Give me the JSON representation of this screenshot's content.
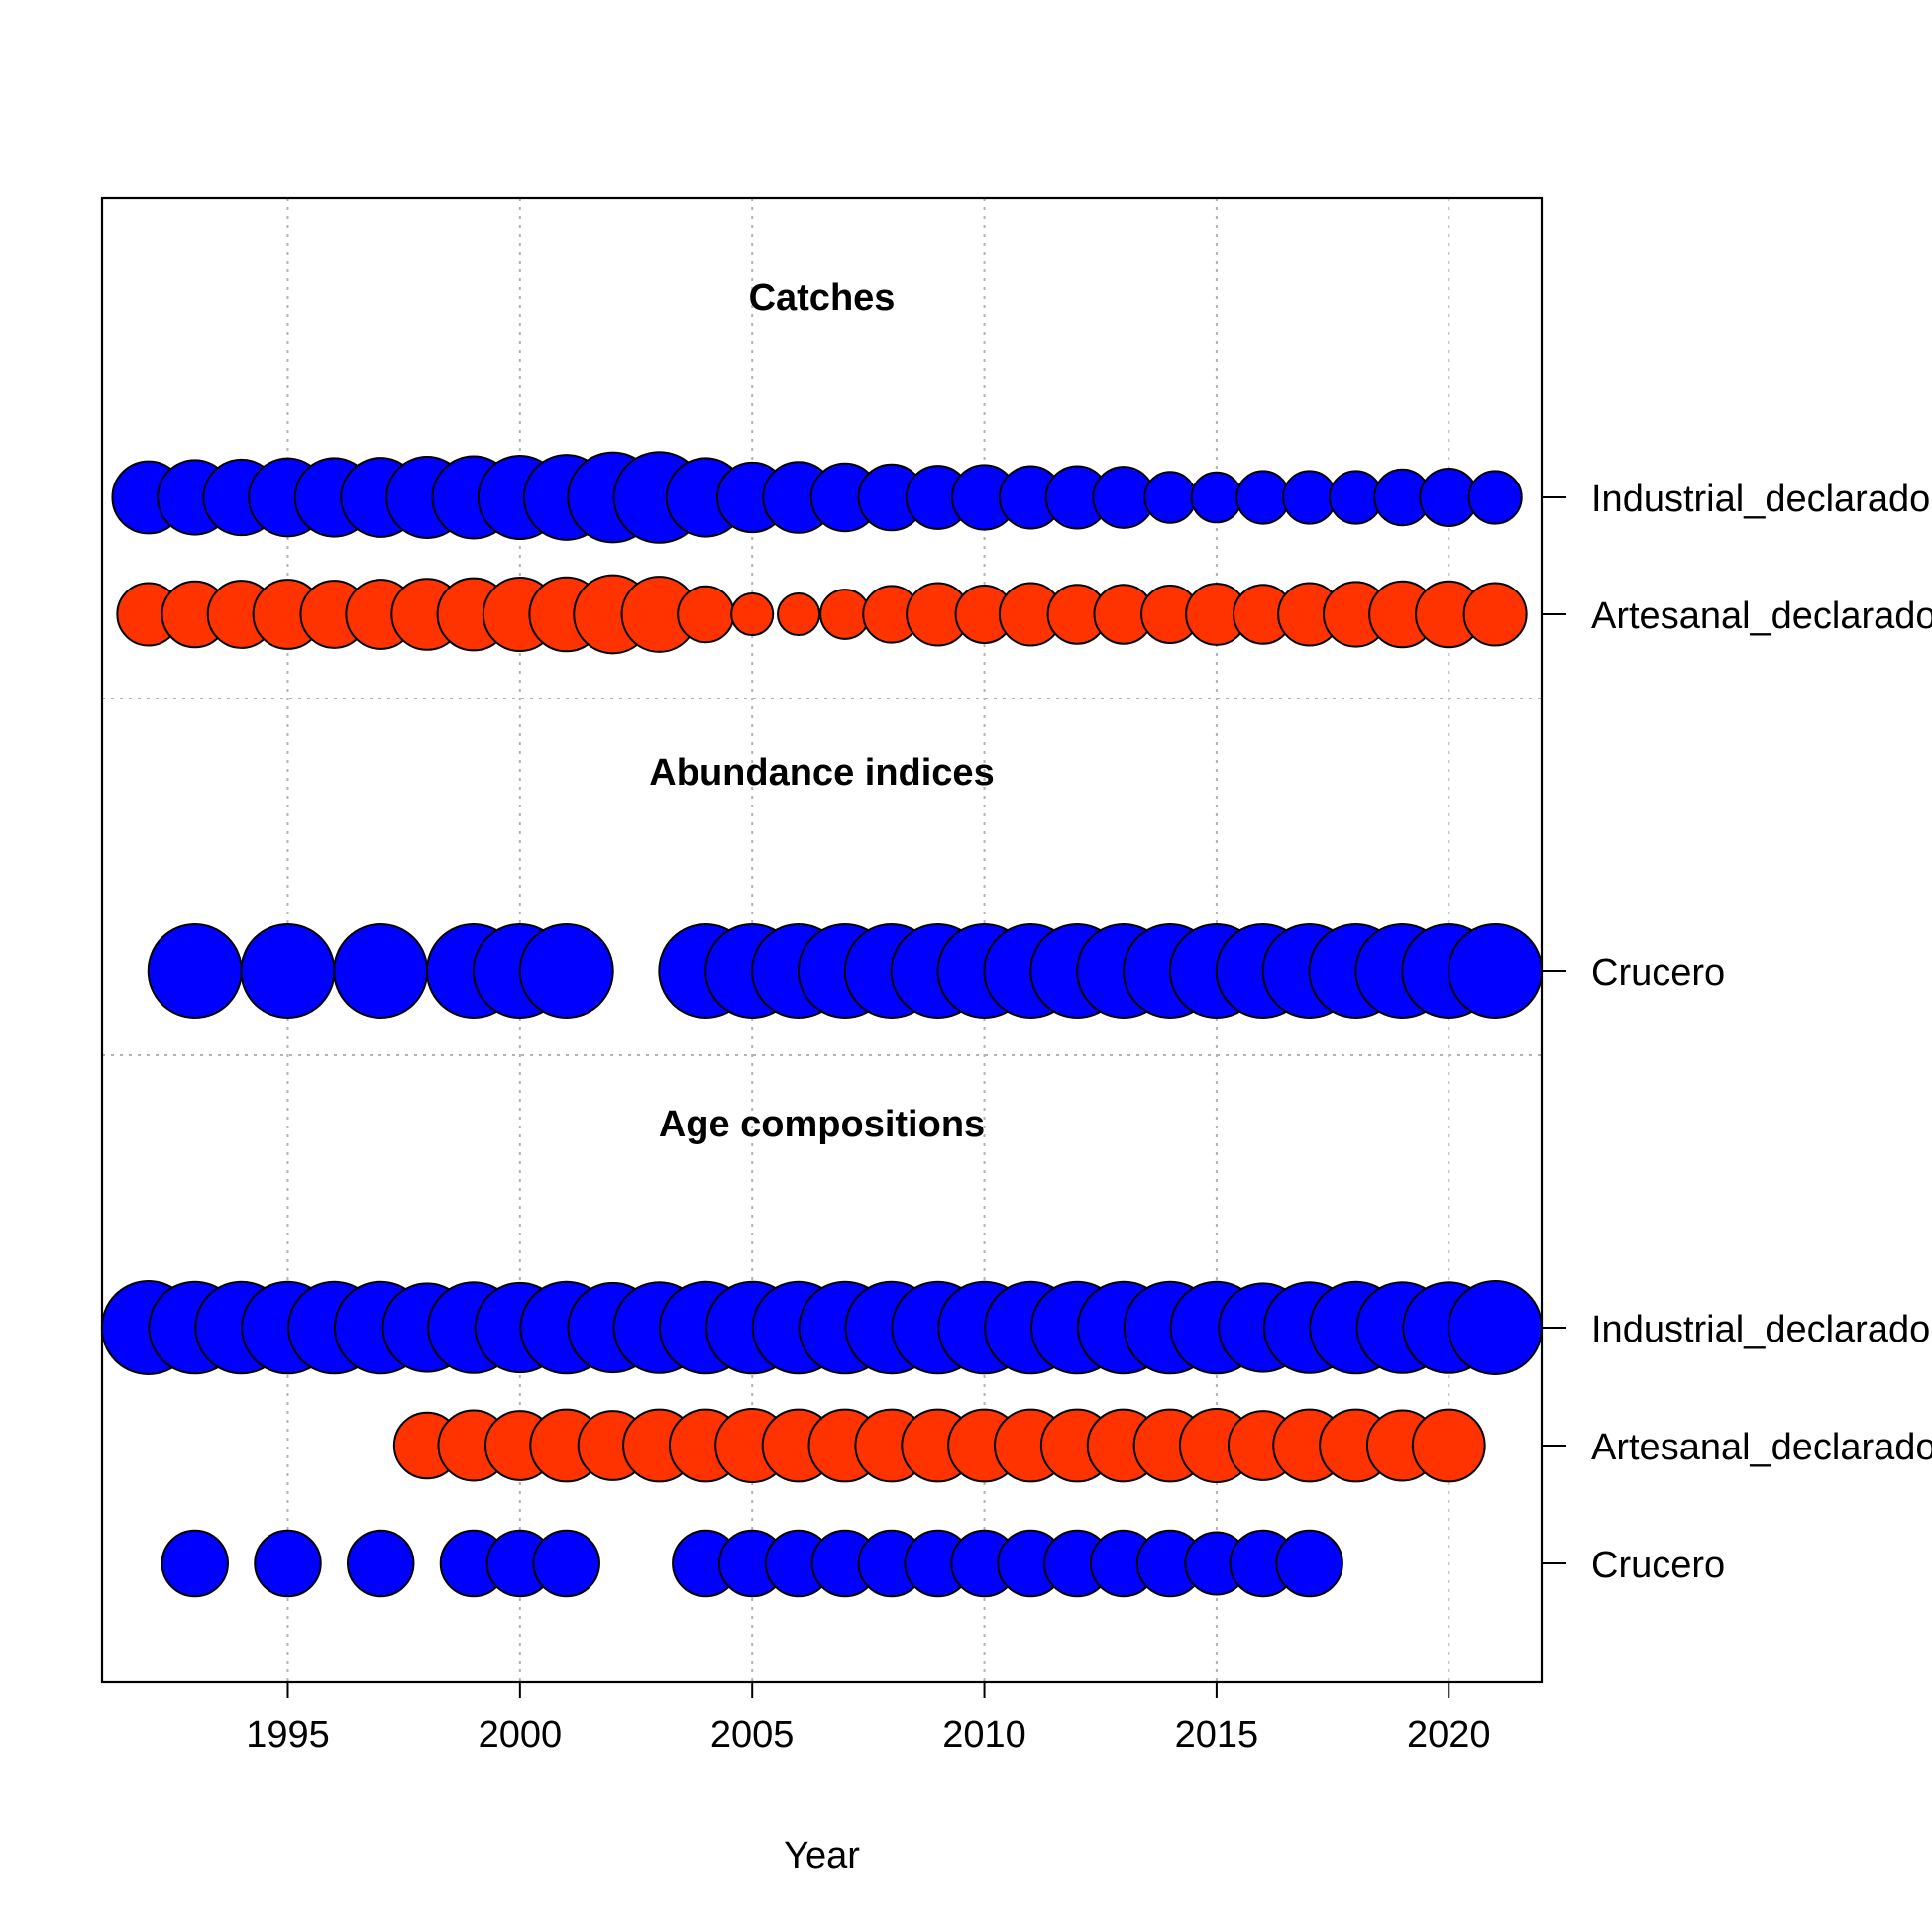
{
  "chart_data": {
    "type": "scatter",
    "subtype": "bubble",
    "xlabel": "Year",
    "x_ticks": [
      1995,
      2000,
      2005,
      2010,
      2015,
      2020
    ],
    "xlim": [
      1991,
      2022
    ],
    "grid": true,
    "colors": {
      "Industrial_declarado": "#0000FF",
      "Artesanal_declarado": "#FF3300",
      "Crucero": "#0000FF"
    },
    "panels": [
      {
        "title": "Catches",
        "rows": [
          {
            "label": "Industrial_declarado",
            "color": "#0000FF",
            "points": [
              {
                "year": 1992,
                "size": 0.6
              },
              {
                "year": 1993,
                "size": 0.64
              },
              {
                "year": 1994,
                "size": 0.66
              },
              {
                "year": 1995,
                "size": 0.7
              },
              {
                "year": 1996,
                "size": 0.71
              },
              {
                "year": 1997,
                "size": 0.72
              },
              {
                "year": 1998,
                "size": 0.76
              },
              {
                "year": 1999,
                "size": 0.78
              },
              {
                "year": 2000,
                "size": 0.8
              },
              {
                "year": 2001,
                "size": 0.83
              },
              {
                "year": 2002,
                "size": 0.93
              },
              {
                "year": 2003,
                "size": 0.95
              },
              {
                "year": 2004,
                "size": 0.71
              },
              {
                "year": 2005,
                "size": 0.56
              },
              {
                "year": 2006,
                "size": 0.58
              },
              {
                "year": 2007,
                "size": 0.53
              },
              {
                "year": 2008,
                "size": 0.5
              },
              {
                "year": 2009,
                "size": 0.46
              },
              {
                "year": 2010,
                "size": 0.48
              },
              {
                "year": 2011,
                "size": 0.45
              },
              {
                "year": 2012,
                "size": 0.45
              },
              {
                "year": 2013,
                "size": 0.43
              },
              {
                "year": 2014,
                "size": 0.3
              },
              {
                "year": 2015,
                "size": 0.29
              },
              {
                "year": 2016,
                "size": 0.32
              },
              {
                "year": 2017,
                "size": 0.32
              },
              {
                "year": 2018,
                "size": 0.32
              },
              {
                "year": 2019,
                "size": 0.36
              },
              {
                "year": 2020,
                "size": 0.38
              },
              {
                "year": 2021,
                "size": 0.32
              }
            ]
          },
          {
            "label": "Artesanal_declarado",
            "color": "#FF3300",
            "points": [
              {
                "year": 1992,
                "size": 0.45
              },
              {
                "year": 1993,
                "size": 0.5
              },
              {
                "year": 1994,
                "size": 0.52
              },
              {
                "year": 1995,
                "size": 0.55
              },
              {
                "year": 1996,
                "size": 0.52
              },
              {
                "year": 1997,
                "size": 0.55
              },
              {
                "year": 1998,
                "size": 0.58
              },
              {
                "year": 1999,
                "size": 0.6
              },
              {
                "year": 2000,
                "size": 0.62
              },
              {
                "year": 2001,
                "size": 0.63
              },
              {
                "year": 2002,
                "size": 0.7
              },
              {
                "year": 2003,
                "size": 0.65
              },
              {
                "year": 2004,
                "size": 0.36
              },
              {
                "year": 2005,
                "size": 0.2
              },
              {
                "year": 2006,
                "size": 0.2
              },
              {
                "year": 2007,
                "size": 0.28
              },
              {
                "year": 2008,
                "size": 0.37
              },
              {
                "year": 2009,
                "size": 0.45
              },
              {
                "year": 2010,
                "size": 0.38
              },
              {
                "year": 2011,
                "size": 0.45
              },
              {
                "year": 2012,
                "size": 0.4
              },
              {
                "year": 2013,
                "size": 0.4
              },
              {
                "year": 2014,
                "size": 0.38
              },
              {
                "year": 2015,
                "size": 0.43
              },
              {
                "year": 2016,
                "size": 0.4
              },
              {
                "year": 2017,
                "size": 0.45
              },
              {
                "year": 2018,
                "size": 0.48
              },
              {
                "year": 2019,
                "size": 0.5
              },
              {
                "year": 2020,
                "size": 0.5
              },
              {
                "year": 2021,
                "size": 0.45
              }
            ]
          }
        ]
      },
      {
        "title": "Abundance indices",
        "rows": [
          {
            "label": "Crucero",
            "color": "#0000FF",
            "points": [
              {
                "year": 1993,
                "size": 1
              },
              {
                "year": 1995,
                "size": 1
              },
              {
                "year": 1997,
                "size": 1
              },
              {
                "year": 1999,
                "size": 1
              },
              {
                "year": 2000,
                "size": 1
              },
              {
                "year": 2001,
                "size": 1
              },
              {
                "year": 2004,
                "size": 1
              },
              {
                "year": 2005,
                "size": 1
              },
              {
                "year": 2006,
                "size": 1
              },
              {
                "year": 2007,
                "size": 1
              },
              {
                "year": 2008,
                "size": 1
              },
              {
                "year": 2009,
                "size": 1
              },
              {
                "year": 2010,
                "size": 1
              },
              {
                "year": 2011,
                "size": 1
              },
              {
                "year": 2012,
                "size": 1
              },
              {
                "year": 2013,
                "size": 1
              },
              {
                "year": 2014,
                "size": 1
              },
              {
                "year": 2015,
                "size": 1
              },
              {
                "year": 2016,
                "size": 1
              },
              {
                "year": 2017,
                "size": 1
              },
              {
                "year": 2018,
                "size": 1
              },
              {
                "year": 2019,
                "size": 1
              },
              {
                "year": 2020,
                "size": 1
              },
              {
                "year": 2021,
                "size": 1
              }
            ]
          }
        ]
      },
      {
        "title": "Age compositions",
        "rows": [
          {
            "label": "Industrial_declarado",
            "color": "#0000FF",
            "points": [
              {
                "year": 1992,
                "size": 1
              },
              {
                "year": 1993,
                "size": 0.97
              },
              {
                "year": 1994,
                "size": 0.97
              },
              {
                "year": 1995,
                "size": 0.97
              },
              {
                "year": 1996,
                "size": 0.97
              },
              {
                "year": 1997,
                "size": 0.97
              },
              {
                "year": 1998,
                "size": 0.9
              },
              {
                "year": 1999,
                "size": 0.95
              },
              {
                "year": 2000,
                "size": 0.92
              },
              {
                "year": 2001,
                "size": 0.97
              },
              {
                "year": 2002,
                "size": 0.92
              },
              {
                "year": 2003,
                "size": 0.95
              },
              {
                "year": 2004,
                "size": 0.97
              },
              {
                "year": 2005,
                "size": 0.97
              },
              {
                "year": 2006,
                "size": 0.97
              },
              {
                "year": 2007,
                "size": 0.97
              },
              {
                "year": 2008,
                "size": 0.97
              },
              {
                "year": 2009,
                "size": 0.97
              },
              {
                "year": 2010,
                "size": 0.97
              },
              {
                "year": 2011,
                "size": 0.97
              },
              {
                "year": 2012,
                "size": 0.97
              },
              {
                "year": 2013,
                "size": 0.97
              },
              {
                "year": 2014,
                "size": 0.97
              },
              {
                "year": 2015,
                "size": 0.97
              },
              {
                "year": 2016,
                "size": 0.9
              },
              {
                "year": 2017,
                "size": 0.95
              },
              {
                "year": 2018,
                "size": 0.97
              },
              {
                "year": 2019,
                "size": 0.95
              },
              {
                "year": 2020,
                "size": 0.95
              },
              {
                "year": 2021,
                "size": 1
              }
            ]
          },
          {
            "label": "Artesanal_declarado",
            "color": "#FF3300",
            "points": [
              {
                "year": 1998,
                "size": 0.5
              },
              {
                "year": 1999,
                "size": 0.57
              },
              {
                "year": 2000,
                "size": 0.55
              },
              {
                "year": 2001,
                "size": 0.6
              },
              {
                "year": 2002,
                "size": 0.55
              },
              {
                "year": 2003,
                "size": 0.6
              },
              {
                "year": 2004,
                "size": 0.6
              },
              {
                "year": 2005,
                "size": 0.62
              },
              {
                "year": 2006,
                "size": 0.6
              },
              {
                "year": 2007,
                "size": 0.6
              },
              {
                "year": 2008,
                "size": 0.6
              },
              {
                "year": 2009,
                "size": 0.6
              },
              {
                "year": 2010,
                "size": 0.6
              },
              {
                "year": 2011,
                "size": 0.6
              },
              {
                "year": 2012,
                "size": 0.6
              },
              {
                "year": 2013,
                "size": 0.6
              },
              {
                "year": 2014,
                "size": 0.6
              },
              {
                "year": 2015,
                "size": 0.62
              },
              {
                "year": 2016,
                "size": 0.55
              },
              {
                "year": 2017,
                "size": 0.6
              },
              {
                "year": 2018,
                "size": 0.6
              },
              {
                "year": 2019,
                "size": 0.57
              },
              {
                "year": 2020,
                "size": 0.6
              }
            ]
          },
          {
            "label": "Crucero",
            "color": "#0000FF",
            "points": [
              {
                "year": 1993,
                "size": 0.5
              },
              {
                "year": 1995,
                "size": 0.5
              },
              {
                "year": 1997,
                "size": 0.5
              },
              {
                "year": 1999,
                "size": 0.5
              },
              {
                "year": 2000,
                "size": 0.5
              },
              {
                "year": 2001,
                "size": 0.5
              },
              {
                "year": 2004,
                "size": 0.5
              },
              {
                "year": 2005,
                "size": 0.5
              },
              {
                "year": 2006,
                "size": 0.5
              },
              {
                "year": 2007,
                "size": 0.5
              },
              {
                "year": 2008,
                "size": 0.5
              },
              {
                "year": 2009,
                "size": 0.5
              },
              {
                "year": 2010,
                "size": 0.5
              },
              {
                "year": 2011,
                "size": 0.5
              },
              {
                "year": 2012,
                "size": 0.5
              },
              {
                "year": 2013,
                "size": 0.5
              },
              {
                "year": 2014,
                "size": 0.5
              },
              {
                "year": 2015,
                "size": 0.45
              },
              {
                "year": 2016,
                "size": 0.5
              },
              {
                "year": 2017,
                "size": 0.5
              }
            ]
          }
        ]
      }
    ]
  }
}
